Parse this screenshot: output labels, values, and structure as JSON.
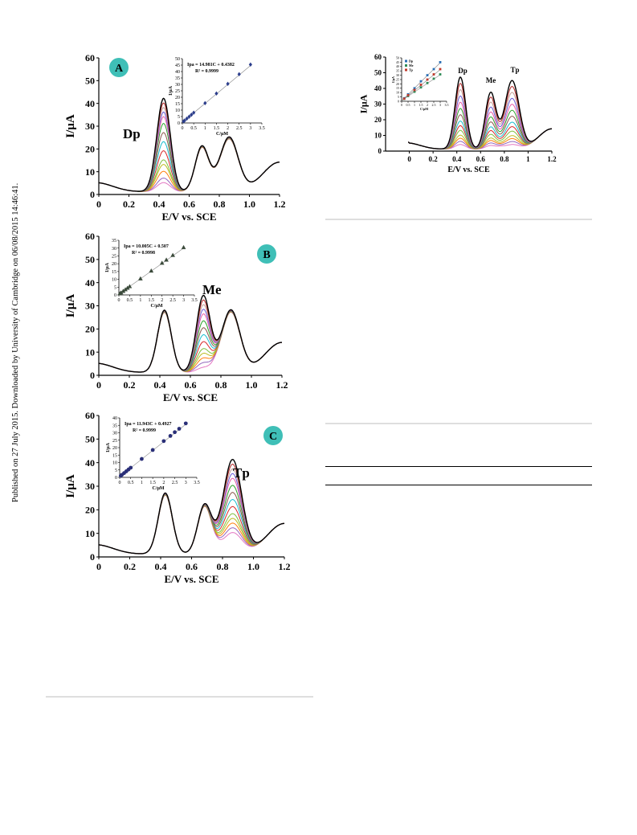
{
  "side_note": "Published on 27 July 2015. Downloaded by University of Cambridge on 06/08/2015 14:46:41.",
  "chart_data": [
    {
      "id": "A",
      "type": "line",
      "badge": "A",
      "peak_label": "Dp",
      "xlabel": "E/V vs. SCE",
      "ylabel": "I/µA",
      "xlim": [
        0,
        1.2
      ],
      "ylim": [
        0,
        60
      ],
      "x_ticks": [
        "0",
        "0.2",
        "0.4",
        "0.6",
        "0.8",
        "1.0",
        "1.2"
      ],
      "y_ticks": [
        "0",
        "10",
        "20",
        "30",
        "40",
        "50",
        "60"
      ],
      "varied_peak": "Dp",
      "peak_heights_varied": [
        4,
        6,
        9,
        12,
        14,
        18,
        22,
        26,
        30,
        33,
        35,
        37,
        39,
        41
      ],
      "fixed_peaks": {
        "Me": 20,
        "Tp": 24
      },
      "inset": {
        "equation": "Ipa = 14.981C + 0.4382",
        "r2": "R² = 0.9999",
        "xlabel": "C/µM",
        "ylabel": "I/µA",
        "x_ticks": [
          "0",
          "0.5",
          "1",
          "1.5",
          "2",
          "2.5",
          "3",
          "3.5"
        ],
        "y_ticks": [
          "0",
          "5",
          "10",
          "15",
          "20",
          "25",
          "30",
          "35",
          "40",
          "45",
          "50"
        ],
        "xlim": [
          0,
          3.5
        ],
        "ylim": [
          0,
          50
        ],
        "marker": "diamond",
        "points": [
          [
            0.05,
            1.2
          ],
          [
            0.1,
            1.9
          ],
          [
            0.2,
            3.4
          ],
          [
            0.3,
            4.9
          ],
          [
            0.4,
            6.4
          ],
          [
            0.5,
            8.0
          ],
          [
            1.0,
            15.4
          ],
          [
            1.5,
            22.9
          ],
          [
            2.0,
            30.4
          ],
          [
            2.5,
            37.9
          ],
          [
            3.0,
            45.4
          ]
        ]
      }
    },
    {
      "id": "B",
      "type": "line",
      "badge": "B",
      "peak_label": "Me",
      "xlabel": "E/V vs. SCE",
      "ylabel": "I/µA",
      "xlim": [
        0,
        1.2
      ],
      "ylim": [
        0,
        60
      ],
      "x_ticks": [
        "0",
        "0.2",
        "0.4",
        "0.6",
        "0.8",
        "1.0",
        "1.2"
      ],
      "y_ticks": [
        "0",
        "10",
        "20",
        "30",
        "40",
        "50",
        "60"
      ],
      "varied_peak": "Me",
      "peak_heights_varied": [
        2,
        4,
        6,
        8,
        10,
        13,
        16,
        19,
        22,
        25,
        27,
        29,
        31,
        33
      ],
      "fixed_peaks": {
        "Dp": 27,
        "Tp": 27
      },
      "inset": {
        "equation": "Ipa = 10.005C + 0.507",
        "r2": "R² = 0.9998",
        "xlabel": "C/µM",
        "ylabel": "I/µA",
        "x_ticks": [
          "0",
          "0.5",
          "1",
          "1.5",
          "2",
          "2.5",
          "3",
          "3.5"
        ],
        "y_ticks": [
          "0",
          "5",
          "10",
          "15",
          "20",
          "25",
          "30",
          "35"
        ],
        "xlim": [
          0,
          3.5
        ],
        "ylim": [
          0,
          35
        ],
        "marker": "triangle",
        "points": [
          [
            0.05,
            1.0
          ],
          [
            0.1,
            1.5
          ],
          [
            0.2,
            2.5
          ],
          [
            0.3,
            3.5
          ],
          [
            0.4,
            4.5
          ],
          [
            0.5,
            5.5
          ],
          [
            1.0,
            10.5
          ],
          [
            1.5,
            15.5
          ],
          [
            2.0,
            20.5
          ],
          [
            2.2,
            22.5
          ],
          [
            2.5,
            25.5
          ],
          [
            3.0,
            30.5
          ]
        ]
      }
    },
    {
      "id": "C",
      "type": "line",
      "badge": "C",
      "peak_label": "Tp",
      "xlabel": "E/V vs. SCE",
      "ylabel": "I/µA",
      "xlim": [
        0,
        1.2
      ],
      "ylim": [
        0,
        60
      ],
      "x_ticks": [
        "0",
        "0.2",
        "0.4",
        "0.6",
        "0.8",
        "1.0",
        "1.2"
      ],
      "y_ticks": [
        "0",
        "10",
        "20",
        "30",
        "40",
        "50",
        "60"
      ],
      "varied_peak": "Tp",
      "peak_heights_varied": [
        9,
        11,
        13,
        15,
        17,
        20,
        23,
        26,
        29,
        32,
        34,
        36,
        38,
        40
      ],
      "fixed_peaks": {
        "Dp": 26,
        "Me": 21
      },
      "inset": {
        "equation": "Ipa = 11.943C + 0.4927",
        "r2": "R² = 0.9999",
        "xlabel": "C/µM",
        "ylabel": "I/µA",
        "x_ticks": [
          "0",
          "0.5",
          "1",
          "1.5",
          "2",
          "2.5",
          "3",
          "3.5"
        ],
        "y_ticks": [
          "0",
          "5",
          "10",
          "15",
          "20",
          "25",
          "30",
          "35",
          "40"
        ],
        "xlim": [
          0,
          3.5
        ],
        "ylim": [
          0,
          40
        ],
        "marker": "circle",
        "points": [
          [
            0.05,
            1.1
          ],
          [
            0.1,
            1.7
          ],
          [
            0.2,
            2.9
          ],
          [
            0.3,
            4.1
          ],
          [
            0.4,
            5.3
          ],
          [
            0.5,
            6.5
          ],
          [
            1.0,
            12.4
          ],
          [
            1.5,
            18.4
          ],
          [
            2.0,
            24.4
          ],
          [
            2.3,
            27.9
          ],
          [
            2.5,
            30.4
          ],
          [
            2.7,
            32.7
          ],
          [
            3.0,
            36.3
          ]
        ]
      }
    },
    {
      "id": "D",
      "type": "line",
      "peak_labels": [
        "Dp",
        "Me",
        "Tp"
      ],
      "xlabel": "E/V vs. SCE",
      "ylabel": "I/µA",
      "xlim": [
        -0.2,
        1.2
      ],
      "ylim": [
        0,
        60
      ],
      "x_ticks": [
        "0",
        "0.2",
        "0.4",
        "0.6",
        "0.8",
        "1",
        "1.2"
      ],
      "y_ticks": [
        "0",
        "10",
        "20",
        "30",
        "40",
        "50",
        "60"
      ],
      "varied_peak": "all",
      "peak_heights_varied": [
        3,
        5,
        7,
        9,
        12,
        15,
        18,
        22,
        26,
        30,
        34,
        38,
        42,
        46
      ],
      "inset": {
        "xlabel": "C/µM",
        "ylabel": "I/µA",
        "x_ticks": [
          "0",
          "0.5",
          "1",
          "1.5",
          "2",
          "2.5",
          "3",
          "3.5"
        ],
        "y_ticks": [
          "0",
          "5",
          "10",
          "15",
          "20",
          "25",
          "30",
          "35",
          "40",
          "45",
          "50"
        ],
        "xlim": [
          0,
          3.5
        ],
        "ylim": [
          0,
          50
        ],
        "legend": [
          "Dp",
          "Me",
          "Tp"
        ],
        "series": [
          {
            "name": "Dp",
            "color": "#2a6fb5",
            "points": [
              [
                0.2,
                3.5
              ],
              [
                0.5,
                8
              ],
              [
                1.0,
                15
              ],
              [
                1.5,
                23
              ],
              [
                2.0,
                30
              ],
              [
                2.5,
                37
              ],
              [
                3.0,
                45
              ]
            ]
          },
          {
            "name": "Me",
            "color": "#2e8b57",
            "points": [
              [
                0.2,
                2.8
              ],
              [
                0.5,
                6
              ],
              [
                1.0,
                11
              ],
              [
                1.5,
                16
              ],
              [
                2.0,
                21
              ],
              [
                2.5,
                26
              ],
              [
                3.0,
                31
              ]
            ]
          },
          {
            "name": "Tp",
            "color": "#c0392b",
            "points": [
              [
                0.2,
                3.0
              ],
              [
                0.5,
                7
              ],
              [
                1.0,
                13
              ],
              [
                1.5,
                19
              ],
              [
                2.0,
                25
              ],
              [
                2.5,
                31
              ],
              [
                3.0,
                37
              ]
            ]
          }
        ]
      }
    }
  ],
  "colors": {
    "badge": "#3fbfb7",
    "curves": [
      "#e377c2",
      "#9467bd",
      "#ff7f0e",
      "#bcbd22",
      "#7fbf3f",
      "#d62728",
      "#17becf",
      "#8c564b",
      "#2ca02c",
      "#e85aa8",
      "#6b5bd6",
      "#c49c94",
      "#b22222",
      "#000000"
    ]
  }
}
